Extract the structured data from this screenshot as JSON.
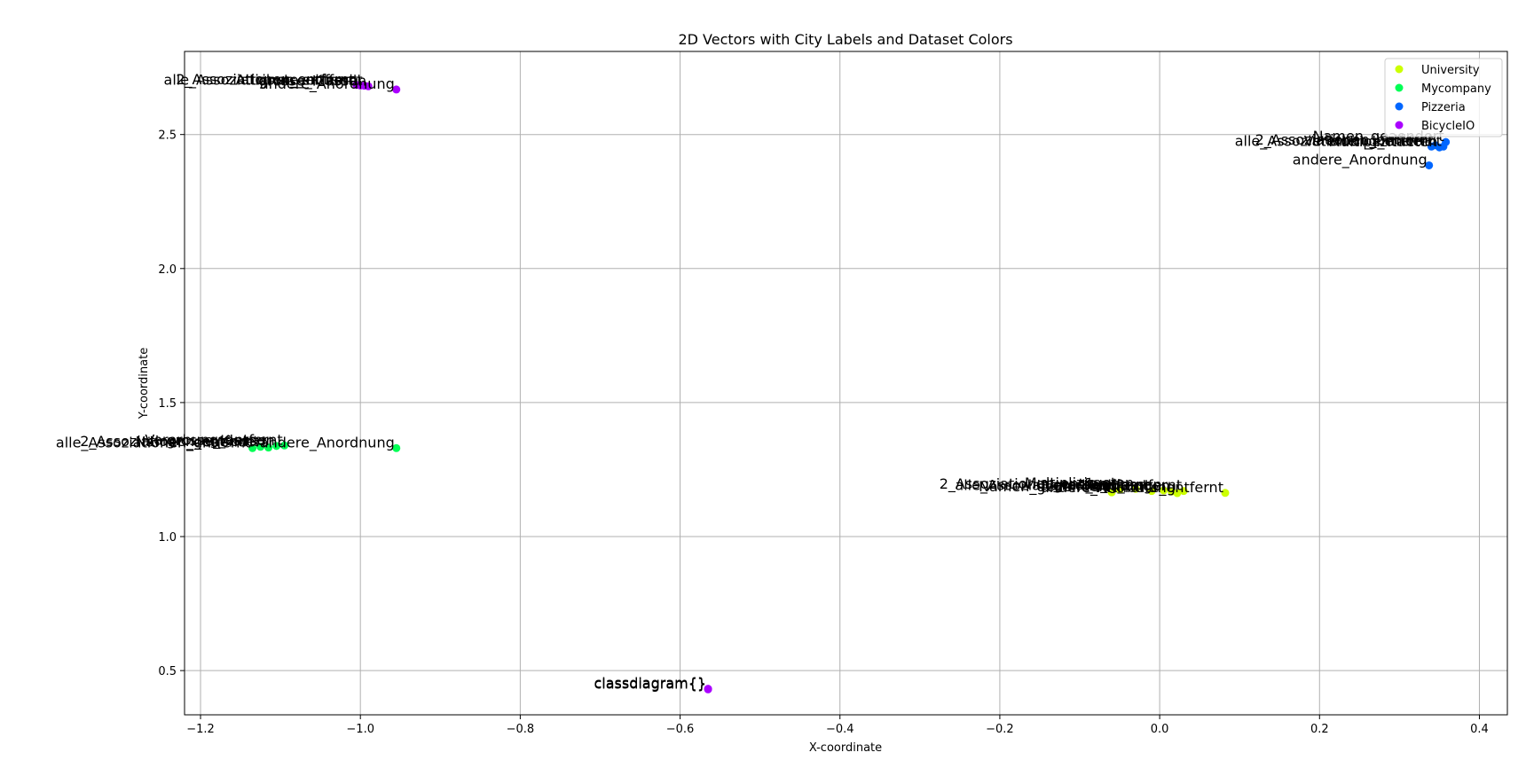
{
  "chart_data": {
    "type": "scatter",
    "title": "2D Vectors with City Labels and Dataset Colors",
    "xlabel": "X-coordinate",
    "ylabel": "Y-coordinate",
    "xlim": [
      -1.22,
      0.435
    ],
    "ylim": [
      0.335,
      2.81
    ],
    "xticks": [
      -1.2,
      -1.0,
      -0.8,
      -0.6,
      -0.4,
      -0.2,
      0.0,
      0.2,
      0.4
    ],
    "xtick_labels": [
      "−1.2",
      "−1.0",
      "−0.8",
      "−0.6",
      "−0.4",
      "−0.2",
      "0.0",
      "0.2",
      "0.4"
    ],
    "yticks": [
      0.5,
      1.0,
      1.5,
      2.0,
      2.5
    ],
    "ytick_labels": [
      "0.5",
      "1.0",
      "1.5",
      "2.0",
      "2.5"
    ],
    "grid": true,
    "legend_position": "top-right",
    "series": [
      {
        "name": "University",
        "color": "#ccff00",
        "points": [
          {
            "x": -0.06,
            "y": 1.165,
            "label": "Namen_geaendert"
          },
          {
            "x": -0.05,
            "y": 1.175,
            "label": "2_Assoziationen_entfernt"
          },
          {
            "x": -0.03,
            "y": 1.178,
            "label": "Multiplizitaeten"
          },
          {
            "x": -0.01,
            "y": 1.17,
            "label": "alle_Assoziationen_entfernt"
          },
          {
            "x": 0.005,
            "y": 1.172,
            "label": "grosse_Klassen"
          },
          {
            "x": 0.015,
            "y": 1.168,
            "label": "Richtungen"
          },
          {
            "x": 0.022,
            "y": 1.162,
            "label": "andere_Anordnung"
          },
          {
            "x": 0.03,
            "y": 1.17,
            "label": "Vererbung_entfernt"
          },
          {
            "x": 0.082,
            "y": 1.163,
            "label": "Attribute_entfernt"
          }
        ]
      },
      {
        "name": "Mycompany",
        "color": "#00ff55",
        "points": [
          {
            "x": -1.135,
            "y": 1.33,
            "label": "alle_Assoziationen_entfernt"
          },
          {
            "x": -1.125,
            "y": 1.335,
            "label": "2_Assoziationen_entfernt"
          },
          {
            "x": -1.115,
            "y": 1.332,
            "label": "Namen_geaendert"
          },
          {
            "x": -1.105,
            "y": 1.338,
            "label": "grosse_Klassen"
          },
          {
            "x": -1.095,
            "y": 1.34,
            "label": "Vererbung_entfernt"
          },
          {
            "x": -0.955,
            "y": 1.33,
            "label": "andere_Anordnung"
          }
        ]
      },
      {
        "name": "Pizzeria",
        "color": "#0066ff",
        "points": [
          {
            "x": 0.34,
            "y": 2.455,
            "label": "alle_Assoziationen_entfernt"
          },
          {
            "x": 0.345,
            "y": 2.46,
            "label": "2_Assoziationen_entfernt"
          },
          {
            "x": 0.35,
            "y": 2.452,
            "label": "Multiplizitaeten"
          },
          {
            "x": 0.355,
            "y": 2.455,
            "label": "Vererbung_entfernt"
          },
          {
            "x": 0.358,
            "y": 2.472,
            "label": "Namen_geaendert"
          },
          {
            "x": 0.337,
            "y": 2.385,
            "label": "andere_Anordnung"
          }
        ]
      },
      {
        "name": "BicycleIO",
        "color": "#aa00ff",
        "points": [
          {
            "x": -1.005,
            "y": 2.685,
            "label": "2_Assoziationen_entfernt"
          },
          {
            "x": -1.0,
            "y": 2.683,
            "label": "alle_Assoziationen_entfernt"
          },
          {
            "x": -0.995,
            "y": 2.682,
            "label": "Attribute_entfernt"
          },
          {
            "x": -0.99,
            "y": 2.68,
            "label": "grosse_Klassen"
          },
          {
            "x": -0.955,
            "y": 2.668,
            "label": "andere_Anordnung"
          },
          {
            "x": -0.565,
            "y": 0.43,
            "label": "classdiagram{}"
          },
          {
            "x": -0.565,
            "y": 0.432,
            "label": "classdiagram{}"
          }
        ]
      }
    ]
  }
}
